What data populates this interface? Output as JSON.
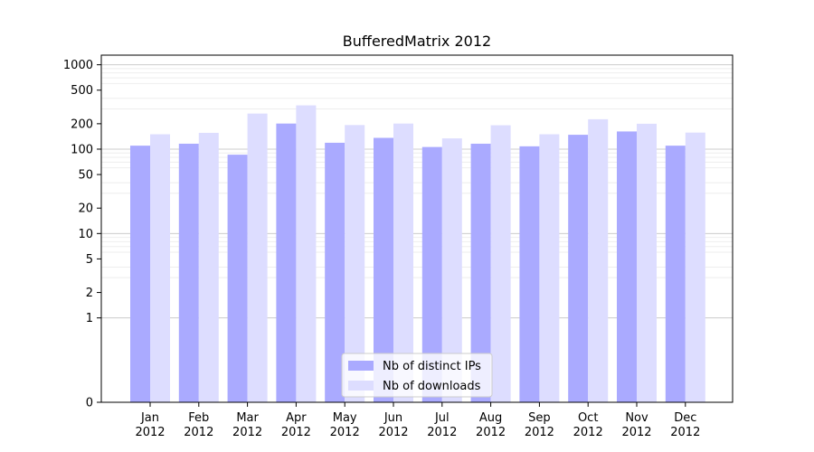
{
  "chart_data": {
    "type": "bar",
    "title": "BufferedMatrix 2012",
    "y_scale": "symlog",
    "ylim": [
      0,
      1300
    ],
    "y_ticks": [
      0,
      1,
      2,
      5,
      10,
      20,
      50,
      100,
      200,
      500,
      1000
    ],
    "y_tick_labels": [
      "0",
      "1",
      "2",
      "5",
      "10",
      "20",
      "50",
      "100",
      "200",
      "500",
      "1000"
    ],
    "grid": true,
    "legend_position": "bottom-center",
    "categories": [
      "Jan\n2012",
      "Feb\n2012",
      "Mar\n2012",
      "Apr\n2012",
      "May\n2012",
      "Jun\n2012",
      "Jul\n2012",
      "Aug\n2012",
      "Sep\n2012",
      "Oct\n2012",
      "Nov\n2012",
      "Dec\n2012"
    ],
    "series": [
      {
        "name": "Nb of distinct IPs",
        "color": "#aaaaff",
        "values": [
          110,
          116,
          86,
          201,
          119,
          136,
          106,
          116,
          108,
          148,
          162,
          110
        ]
      },
      {
        "name": "Nb of downloads",
        "color": "#ddddff",
        "values": [
          150,
          156,
          264,
          330,
          193,
          201,
          134,
          192,
          150,
          226,
          200,
          157
        ]
      }
    ]
  }
}
